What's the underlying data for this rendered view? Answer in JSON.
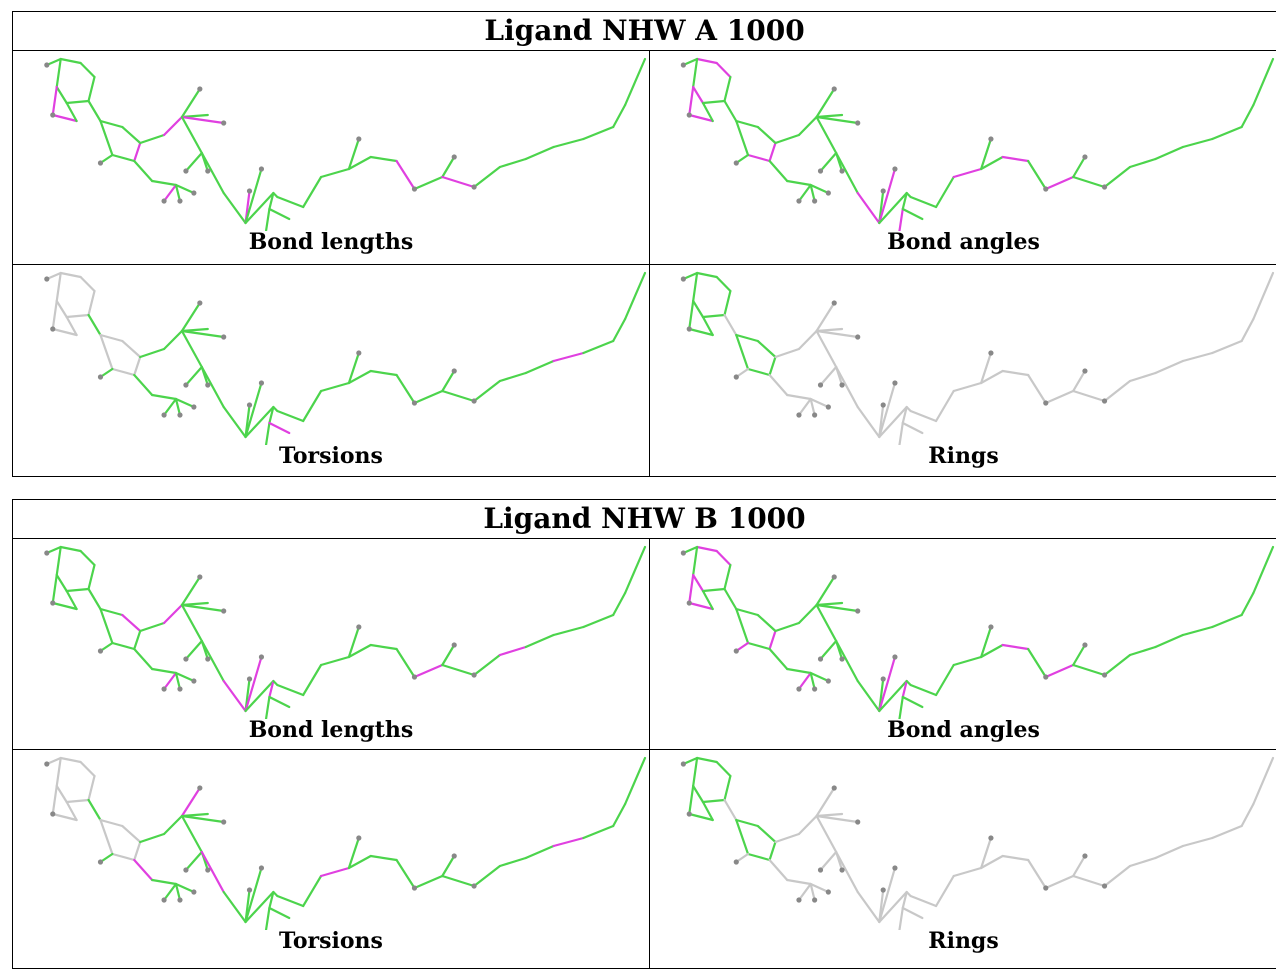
{
  "colors": {
    "ok": "#4cd44c",
    "outlier": "#e040e0",
    "neutral": "#c8c8c8",
    "atom": "#888888"
  },
  "blocks": [
    {
      "title": "Ligand NHW A 1000",
      "panels": [
        {
          "label": "Bond lengths",
          "scheme": "lengthsA"
        },
        {
          "label": "Bond angles",
          "scheme": "anglesA"
        },
        {
          "label": "Torsions",
          "scheme": "torsionsA"
        },
        {
          "label": "Rings",
          "scheme": "rings"
        }
      ]
    },
    {
      "title": "Ligand NHW B 1000",
      "panels": [
        {
          "label": "Bond lengths",
          "scheme": "lengthsB"
        },
        {
          "label": "Bond angles",
          "scheme": "anglesB"
        },
        {
          "label": "Torsions",
          "scheme": "torsionsB"
        },
        {
          "label": "Rings",
          "scheme": "rings"
        }
      ]
    }
  ]
}
